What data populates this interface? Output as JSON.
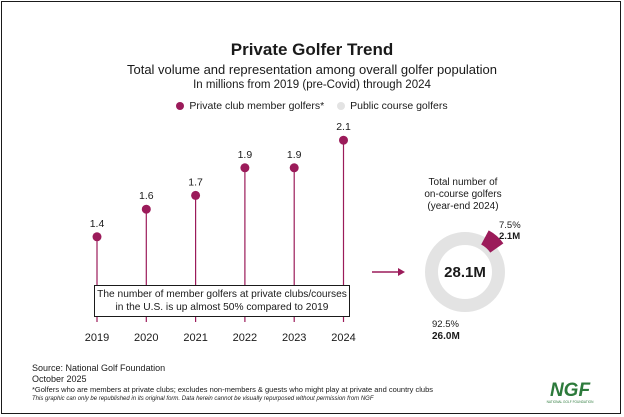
{
  "title": "Private Golfer Trend",
  "subtitle": "Total volume and representation among overall golfer population",
  "subtitle2": "In millions from 2019 (pre-Covid) through 2024",
  "legend": {
    "private": "Private club member golfers*",
    "public": "Public course golfers"
  },
  "colors": {
    "accent": "#9b1b5a",
    "public": "#e3e3e3",
    "ngf_green": "#2c7a3b",
    "stem": "#9b1b5a"
  },
  "note": "The number of member golfers at private clubs/courses in the U.S. is up almost 50% compared to 2019",
  "donut_title": {
    "line1": "Total number of",
    "line2": "on-course golfers",
    "line3": "(year-end 2024)"
  },
  "footer": {
    "source": "Source: National Golf Foundation",
    "date": "October 2025",
    "footnote": "*Golfers who are members at private clubs; excludes non-members & guests who might play at private and country clubs",
    "disclaimer": "This graphic can only be republished in its original form. Data herein cannot be visually repurposed without permission from NGF"
  },
  "logo": {
    "text": "NGF",
    "sub": "NATIONAL GOLF FOUNDATION"
  },
  "chart_data": [
    {
      "type": "scatter",
      "categories": [
        "2019",
        "2020",
        "2021",
        "2022",
        "2023",
        "2024"
      ],
      "series": [
        {
          "name": "Private club member golfers*",
          "values": [
            1.4,
            1.6,
            1.7,
            1.9,
            1.9,
            2.1
          ]
        }
      ],
      "data_labels": [
        "1.4",
        "1.6",
        "1.7",
        "1.9",
        "1.9",
        "2.1"
      ]
    },
    {
      "type": "pie",
      "center_label": "28.1M",
      "slices": [
        {
          "name": "Private club member golfers*",
          "pct": 7.5,
          "value": 2.1,
          "pct_label": "7.5%",
          "value_label": "2.1M"
        },
        {
          "name": "Public course golfers",
          "pct": 92.5,
          "value": 26.0,
          "pct_label": "92.5%",
          "value_label": "26.0M"
        }
      ]
    }
  ]
}
